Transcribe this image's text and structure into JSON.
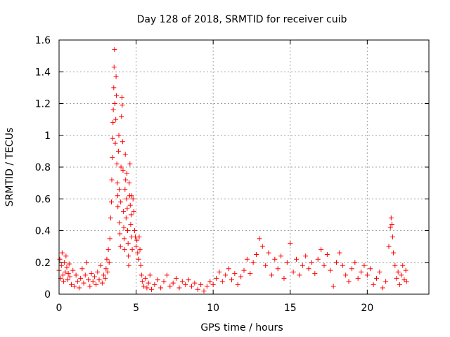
{
  "chart_data": {
    "type": "scatter",
    "title": "Day 128 of 2018, SRMTID for receiver cuib",
    "xlabel": "GPS time / hours",
    "ylabel": "SRMTID / TECUs",
    "xlim": [
      0,
      24
    ],
    "ylim": [
      0,
      1.6
    ],
    "xticks": [
      0,
      5,
      10,
      15,
      20
    ],
    "xtick_labels": [
      "0",
      "5",
      "10",
      "15",
      "20"
    ],
    "yticks": [
      0,
      0.2,
      0.4,
      0.6,
      0.8,
      1.0,
      1.2,
      1.4,
      1.6
    ],
    "ytick_labels": [
      "0",
      "0.2",
      "0.4",
      "0.6",
      "0.8",
      "1",
      "1.2",
      "1.4",
      "1.6"
    ],
    "grid": true,
    "marker": "+",
    "color": "#ff0000",
    "series": [
      {
        "name": "SRMTID",
        "points": [
          [
            0.0,
            0.15
          ],
          [
            0.05,
            0.22
          ],
          [
            0.1,
            0.1
          ],
          [
            0.15,
            0.18
          ],
          [
            0.2,
            0.26
          ],
          [
            0.25,
            0.12
          ],
          [
            0.3,
            0.08
          ],
          [
            0.35,
            0.2
          ],
          [
            0.4,
            0.14
          ],
          [
            0.45,
            0.24
          ],
          [
            0.5,
            0.17
          ],
          [
            0.55,
            0.09
          ],
          [
            0.6,
            0.13
          ],
          [
            0.65,
            0.19
          ],
          [
            0.7,
            0.11
          ],
          [
            0.8,
            0.06
          ],
          [
            0.9,
            0.15
          ],
          [
            1.0,
            0.05
          ],
          [
            1.1,
            0.12
          ],
          [
            1.2,
            0.08
          ],
          [
            1.3,
            0.04
          ],
          [
            1.4,
            0.1
          ],
          [
            1.5,
            0.16
          ],
          [
            1.6,
            0.07
          ],
          [
            1.7,
            0.12
          ],
          [
            1.8,
            0.2
          ],
          [
            1.9,
            0.09
          ],
          [
            2.0,
            0.05
          ],
          [
            2.1,
            0.13
          ],
          [
            2.2,
            0.08
          ],
          [
            2.3,
            0.11
          ],
          [
            2.4,
            0.06
          ],
          [
            2.5,
            0.14
          ],
          [
            2.6,
            0.09
          ],
          [
            2.7,
            0.18
          ],
          [
            2.8,
            0.07
          ],
          [
            2.9,
            0.12
          ],
          [
            3.0,
            0.1
          ],
          [
            3.05,
            0.16
          ],
          [
            3.1,
            0.22
          ],
          [
            3.15,
            0.14
          ],
          [
            3.2,
            0.28
          ],
          [
            3.25,
            0.2
          ],
          [
            3.3,
            0.35
          ],
          [
            3.35,
            0.48
          ],
          [
            3.4,
            0.58
          ],
          [
            3.42,
            0.72
          ],
          [
            3.45,
            0.86
          ],
          [
            3.48,
            0.98
          ],
          [
            3.5,
            1.08
          ],
          [
            3.52,
            1.16
          ],
          [
            3.55,
            1.3
          ],
          [
            3.57,
            1.43
          ],
          [
            3.6,
            1.54
          ],
          [
            3.62,
            1.2
          ],
          [
            3.65,
            0.95
          ],
          [
            3.68,
            1.1
          ],
          [
            3.7,
            1.37
          ],
          [
            3.72,
            1.25
          ],
          [
            3.75,
            0.82
          ],
          [
            3.78,
            0.7
          ],
          [
            3.8,
            0.62
          ],
          [
            3.82,
            0.55
          ],
          [
            3.85,
            0.9
          ],
          [
            3.88,
            1.0
          ],
          [
            3.9,
            0.66
          ],
          [
            3.92,
            0.45
          ],
          [
            3.95,
            0.38
          ],
          [
            3.98,
            0.3
          ],
          [
            4.0,
            0.58
          ],
          [
            4.02,
            0.8
          ],
          [
            4.05,
            1.12
          ],
          [
            4.08,
            1.24
          ],
          [
            4.1,
            1.19
          ],
          [
            4.12,
            0.96
          ],
          [
            4.15,
            0.78
          ],
          [
            4.18,
            0.52
          ],
          [
            4.2,
            0.42
          ],
          [
            4.22,
            0.35
          ],
          [
            4.25,
            0.28
          ],
          [
            4.28,
            0.66
          ],
          [
            4.3,
            0.88
          ],
          [
            4.32,
            0.72
          ],
          [
            4.35,
            0.48
          ],
          [
            4.38,
            0.6
          ],
          [
            4.4,
            0.76
          ],
          [
            4.42,
            0.54
          ],
          [
            4.45,
            0.4
          ],
          [
            4.48,
            0.32
          ],
          [
            4.5,
            0.24
          ],
          [
            4.52,
            0.18
          ],
          [
            4.55,
            0.7
          ],
          [
            4.58,
            0.62
          ],
          [
            4.6,
            0.82
          ],
          [
            4.62,
            0.56
          ],
          [
            4.65,
            0.44
          ],
          [
            4.68,
            0.5
          ],
          [
            4.7,
            0.62
          ],
          [
            4.72,
            0.36
          ],
          [
            4.75,
            0.28
          ],
          [
            4.8,
            0.6
          ],
          [
            4.85,
            0.52
          ],
          [
            4.9,
            0.4
          ],
          [
            4.95,
            0.36
          ],
          [
            5.0,
            0.3
          ],
          [
            5.05,
            0.34
          ],
          [
            5.1,
            0.26
          ],
          [
            5.15,
            0.22
          ],
          [
            5.2,
            0.36
          ],
          [
            5.25,
            0.28
          ],
          [
            5.3,
            0.18
          ],
          [
            5.35,
            0.12
          ],
          [
            5.4,
            0.08
          ],
          [
            5.5,
            0.05
          ],
          [
            5.6,
            0.1
          ],
          [
            5.7,
            0.04
          ],
          [
            5.8,
            0.07
          ],
          [
            5.9,
            0.12
          ],
          [
            6.0,
            0.03
          ],
          [
            6.2,
            0.06
          ],
          [
            6.4,
            0.09
          ],
          [
            6.6,
            0.04
          ],
          [
            6.8,
            0.08
          ],
          [
            7.0,
            0.12
          ],
          [
            7.2,
            0.05
          ],
          [
            7.4,
            0.07
          ],
          [
            7.6,
            0.1
          ],
          [
            7.8,
            0.04
          ],
          [
            8.0,
            0.08
          ],
          [
            8.2,
            0.06
          ],
          [
            8.4,
            0.09
          ],
          [
            8.6,
            0.05
          ],
          [
            8.8,
            0.07
          ],
          [
            9.0,
            0.03
          ],
          [
            9.2,
            0.06
          ],
          [
            9.4,
            0.02
          ],
          [
            9.6,
            0.05
          ],
          [
            9.8,
            0.08
          ],
          [
            10.0,
            0.06
          ],
          [
            10.2,
            0.1
          ],
          [
            10.4,
            0.14
          ],
          [
            10.6,
            0.08
          ],
          [
            10.8,
            0.12
          ],
          [
            11.0,
            0.16
          ],
          [
            11.2,
            0.09
          ],
          [
            11.4,
            0.13
          ],
          [
            11.6,
            0.06
          ],
          [
            11.8,
            0.11
          ],
          [
            12.0,
            0.15
          ],
          [
            12.2,
            0.22
          ],
          [
            12.4,
            0.13
          ],
          [
            12.6,
            0.2
          ],
          [
            12.8,
            0.25
          ],
          [
            13.0,
            0.35
          ],
          [
            13.2,
            0.3
          ],
          [
            13.4,
            0.18
          ],
          [
            13.6,
            0.26
          ],
          [
            13.8,
            0.12
          ],
          [
            14.0,
            0.22
          ],
          [
            14.2,
            0.16
          ],
          [
            14.4,
            0.24
          ],
          [
            14.6,
            0.1
          ],
          [
            14.8,
            0.2
          ],
          [
            15.0,
            0.32
          ],
          [
            15.2,
            0.14
          ],
          [
            15.4,
            0.22
          ],
          [
            15.6,
            0.12
          ],
          [
            15.8,
            0.18
          ],
          [
            16.0,
            0.24
          ],
          [
            16.2,
            0.16
          ],
          [
            16.4,
            0.2
          ],
          [
            16.6,
            0.13
          ],
          [
            16.8,
            0.22
          ],
          [
            17.0,
            0.28
          ],
          [
            17.2,
            0.18
          ],
          [
            17.4,
            0.25
          ],
          [
            17.6,
            0.15
          ],
          [
            17.8,
            0.05
          ],
          [
            18.0,
            0.2
          ],
          [
            18.2,
            0.26
          ],
          [
            18.4,
            0.18
          ],
          [
            18.6,
            0.12
          ],
          [
            18.8,
            0.08
          ],
          [
            19.0,
            0.16
          ],
          [
            19.2,
            0.2
          ],
          [
            19.4,
            0.1
          ],
          [
            19.6,
            0.14
          ],
          [
            19.8,
            0.18
          ],
          [
            20.0,
            0.12
          ],
          [
            20.2,
            0.16
          ],
          [
            20.4,
            0.06
          ],
          [
            20.6,
            0.1
          ],
          [
            20.8,
            0.14
          ],
          [
            21.0,
            0.04
          ],
          [
            21.2,
            0.08
          ],
          [
            21.4,
            0.3
          ],
          [
            21.5,
            0.42
          ],
          [
            21.55,
            0.48
          ],
          [
            21.6,
            0.44
          ],
          [
            21.65,
            0.36
          ],
          [
            21.7,
            0.26
          ],
          [
            21.8,
            0.18
          ],
          [
            21.9,
            0.1
          ],
          [
            22.0,
            0.14
          ],
          [
            22.1,
            0.06
          ],
          [
            22.2,
            0.12
          ],
          [
            22.3,
            0.18
          ],
          [
            22.4,
            0.09
          ],
          [
            22.5,
            0.15
          ],
          [
            22.55,
            0.08
          ]
        ]
      }
    ]
  }
}
